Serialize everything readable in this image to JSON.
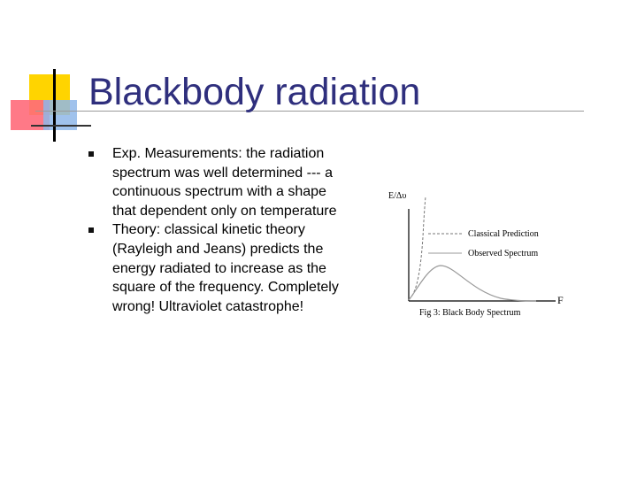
{
  "slide": {
    "title": "Blackbody radiation",
    "bullets": [
      "Exp. Measurements: the radiation spectrum was well determined --- a continuous spectrum with a shape that dependent only on temperature",
      "Theory: classical kinetic theory (Rayleigh and Jeans) predicts the energy radiated to increase as the square of the frequency. Completely wrong! Ultraviolet catastrophe!"
    ]
  },
  "figure": {
    "y_axis_label": "E/Δυ",
    "x_axis_label": "F",
    "legend": {
      "classical": "Classical Prediction",
      "observed": "Observed Spectrum"
    },
    "caption": "Fig 3: Black Body Spectrum",
    "colors": {
      "classical": "#777777",
      "observed": "#999999",
      "axis": "#000000"
    }
  },
  "logo": {
    "colors": {
      "yellow": "#ffd400",
      "red": "#ff6a7a",
      "blue": "#8fb7e9"
    }
  }
}
